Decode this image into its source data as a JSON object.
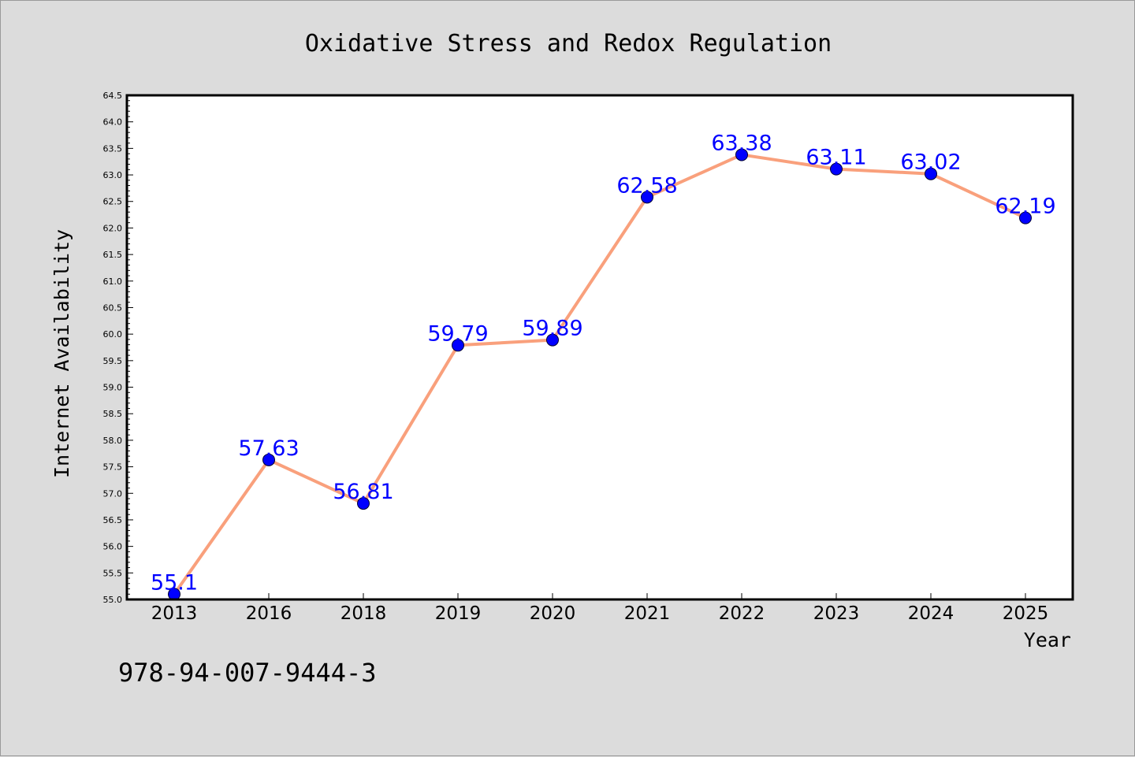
{
  "chart_data": {
    "type": "line",
    "title": "Oxidative Stress and Redox Regulation",
    "xlabel": "Year",
    "ylabel": "Internet Availability",
    "categories": [
      "2013",
      "2016",
      "2018",
      "2019",
      "2020",
      "2021",
      "2022",
      "2023",
      "2024",
      "2025"
    ],
    "values": [
      55.1,
      57.63,
      56.81,
      59.79,
      59.89,
      62.58,
      63.38,
      63.11,
      63.02,
      62.19
    ],
    "data_labels": [
      "55.1",
      "57.63",
      "56.81",
      "59.79",
      "59.89",
      "62.58",
      "63.38",
      "63.11",
      "63.02",
      "62.19"
    ],
    "ylim": [
      55.0,
      64.5
    ],
    "y_ticks": [
      "55.0",
      "55.5",
      "56.0",
      "56.5",
      "57.0",
      "57.5",
      "58.0",
      "58.5",
      "59.0",
      "59.5",
      "60.0",
      "60.5",
      "61.0",
      "61.5",
      "62.0",
      "62.5",
      "63.0",
      "63.5",
      "64.0",
      "64.5"
    ],
    "grid": false,
    "legend": "none",
    "colors": {
      "line": "#f9a07c",
      "marker": "#0000ff",
      "data_label": "#0000ff",
      "plot_background": "#ffffff",
      "page_background": "#dcdcdc"
    }
  },
  "footer": {
    "isbn": "978-94-007-9444-3"
  }
}
